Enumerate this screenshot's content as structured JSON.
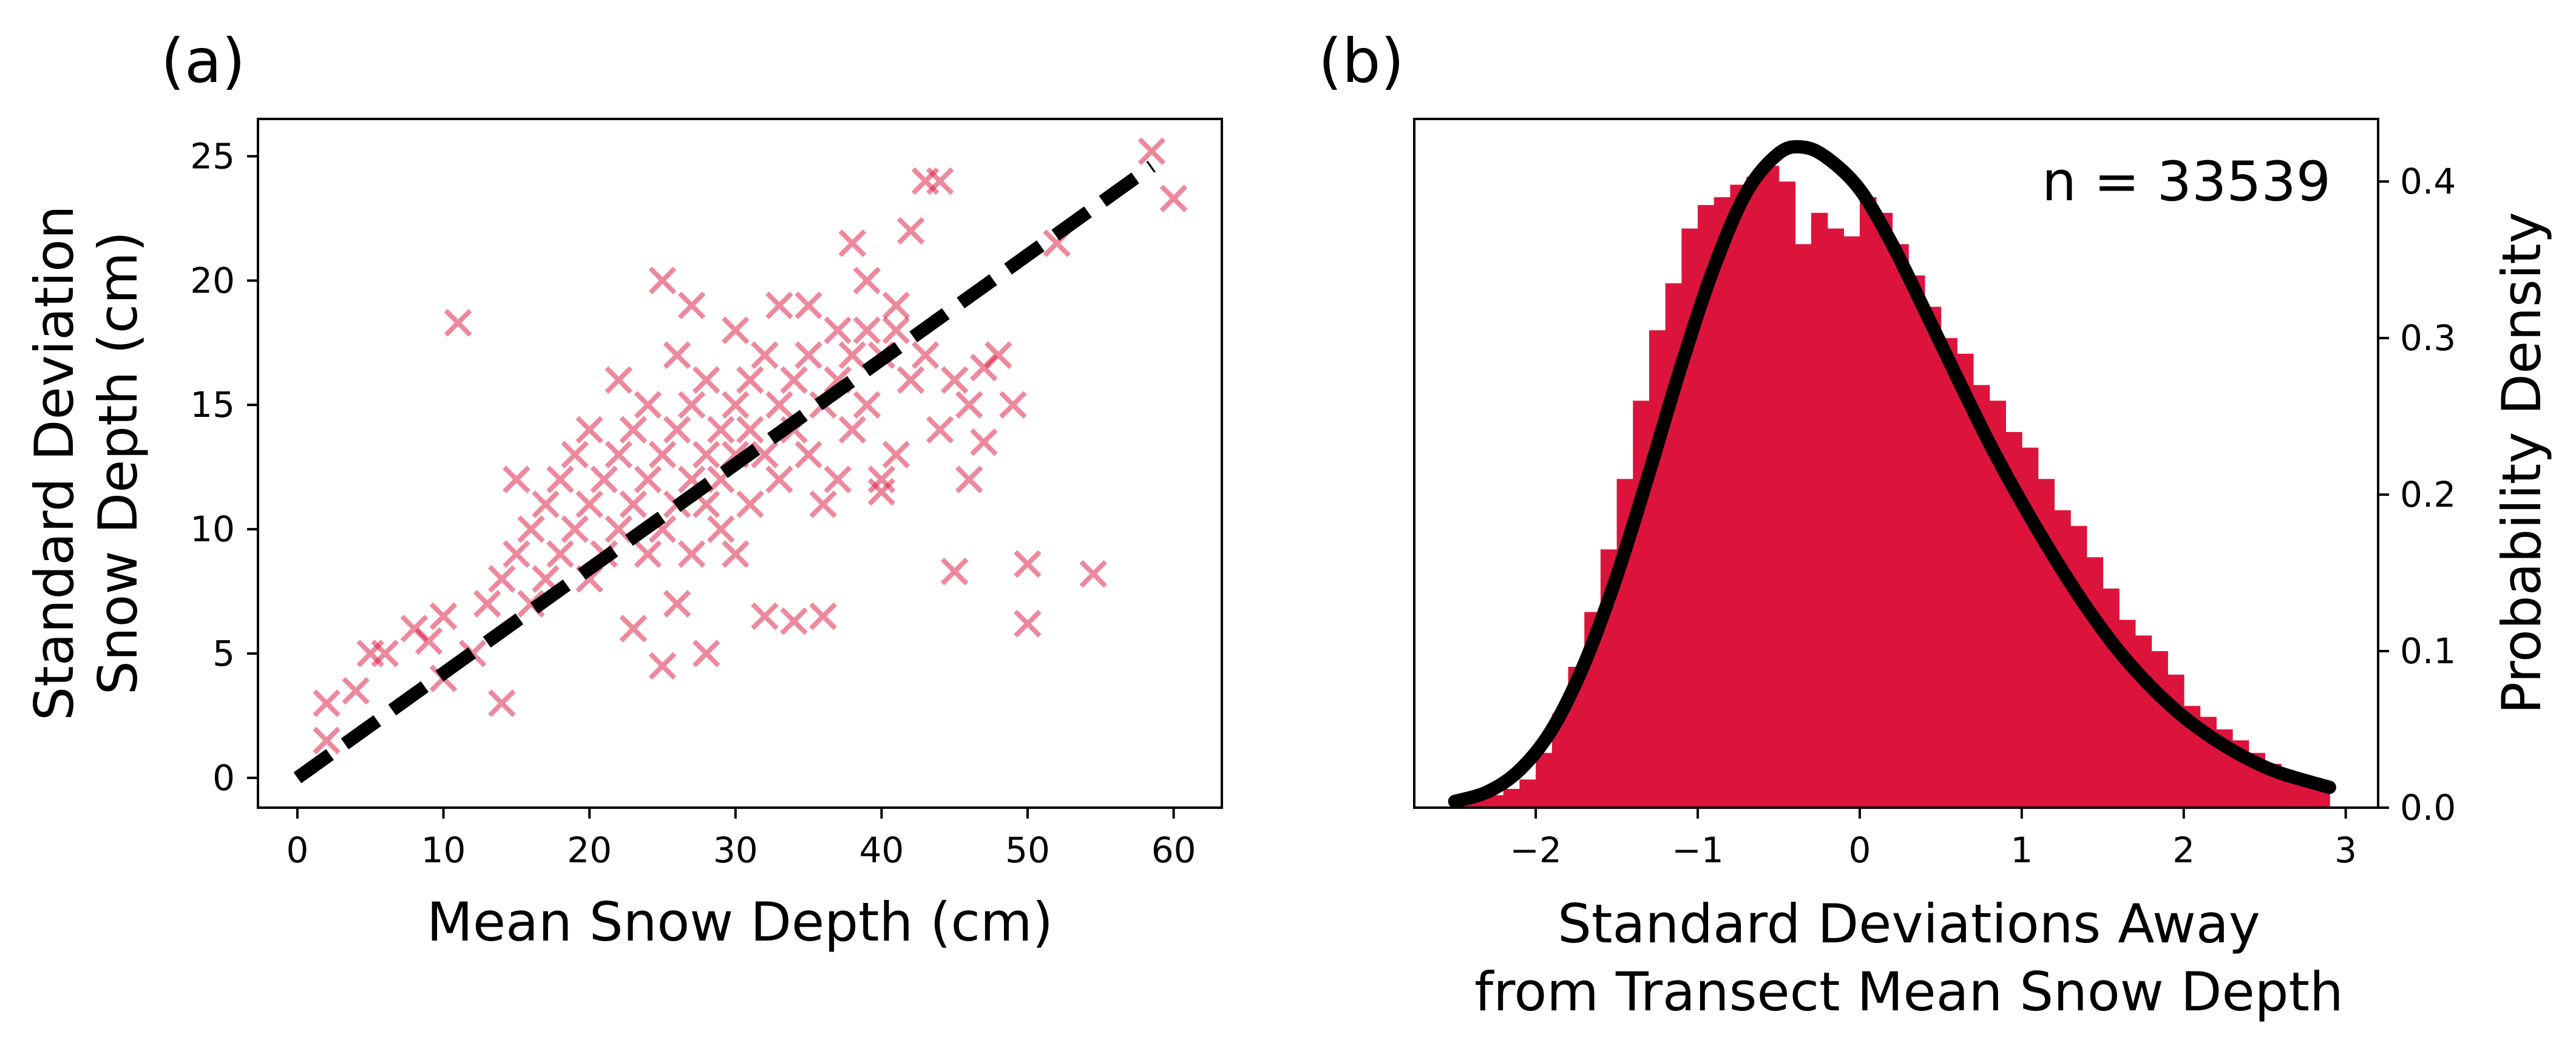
{
  "panels": {
    "a": {
      "label": "(a)"
    },
    "b": {
      "label": "(b)"
    }
  },
  "chart_data": [
    {
      "type": "scatter",
      "panel": "(a)",
      "xlabel": "Mean Snow Depth (cm)",
      "ylabel_lines": [
        "Standard Deviation",
        "Snow Depth (cm)"
      ],
      "xlim": [
        -2.7,
        63.3
      ],
      "ylim": [
        -1.2,
        26.5
      ],
      "xticks": [
        0,
        10,
        20,
        30,
        40,
        50,
        60
      ],
      "yticks": [
        0,
        5,
        10,
        15,
        20,
        25
      ],
      "grid": false,
      "marker": "x",
      "marker_color": "#DC143C",
      "marker_alpha": 0.5,
      "fit_line": {
        "style": "dashed",
        "color": "#000000",
        "x": [
          0,
          58.5
        ],
        "y": [
          0,
          24.6
        ]
      },
      "points": [
        [
          2,
          1.5
        ],
        [
          2,
          3
        ],
        [
          4,
          3.5
        ],
        [
          5,
          5
        ],
        [
          6,
          5
        ],
        [
          8,
          6
        ],
        [
          9,
          5.5
        ],
        [
          10,
          4
        ],
        [
          10,
          6.5
        ],
        [
          11,
          18.3
        ],
        [
          12,
          5
        ],
        [
          13,
          7
        ],
        [
          14,
          8
        ],
        [
          14,
          3
        ],
        [
          15,
          9
        ],
        [
          15,
          12
        ],
        [
          16,
          7
        ],
        [
          16,
          10
        ],
        [
          17,
          11
        ],
        [
          17,
          8
        ],
        [
          18,
          9
        ],
        [
          18,
          12
        ],
        [
          19,
          10
        ],
        [
          19,
          13
        ],
        [
          20,
          11
        ],
        [
          20,
          8
        ],
        [
          20,
          14
        ],
        [
          21,
          12
        ],
        [
          21,
          9
        ],
        [
          22,
          10
        ],
        [
          22,
          13
        ],
        [
          22,
          16
        ],
        [
          23,
          11
        ],
        [
          23,
          6
        ],
        [
          23,
          14
        ],
        [
          24,
          12
        ],
        [
          24,
          9
        ],
        [
          24,
          15
        ],
        [
          25,
          13
        ],
        [
          25,
          20
        ],
        [
          25,
          10
        ],
        [
          25,
          4.5
        ],
        [
          26,
          11
        ],
        [
          26,
          14
        ],
        [
          26,
          17
        ],
        [
          26,
          7
        ],
        [
          27,
          12
        ],
        [
          27,
          15
        ],
        [
          27,
          19
        ],
        [
          27,
          9
        ],
        [
          28,
          13
        ],
        [
          28,
          11
        ],
        [
          28,
          16
        ],
        [
          28,
          5
        ],
        [
          29,
          14
        ],
        [
          29,
          12
        ],
        [
          29,
          10
        ],
        [
          30,
          15
        ],
        [
          30,
          13
        ],
        [
          30,
          18
        ],
        [
          30,
          9
        ],
        [
          31,
          14
        ],
        [
          31,
          16
        ],
        [
          31,
          11
        ],
        [
          32,
          13
        ],
        [
          32,
          17
        ],
        [
          32,
          6.5
        ],
        [
          33,
          15
        ],
        [
          33,
          12
        ],
        [
          33,
          19
        ],
        [
          34,
          16
        ],
        [
          34,
          14
        ],
        [
          34,
          6.3
        ],
        [
          35,
          17
        ],
        [
          35,
          13
        ],
        [
          35,
          19
        ],
        [
          36,
          15
        ],
        [
          36,
          11
        ],
        [
          36,
          6.5
        ],
        [
          37,
          16
        ],
        [
          37,
          12
        ],
        [
          37,
          18
        ],
        [
          38,
          17
        ],
        [
          38,
          21.5
        ],
        [
          38,
          14
        ],
        [
          39,
          18
        ],
        [
          39,
          15
        ],
        [
          39,
          20
        ],
        [
          40,
          12
        ],
        [
          40,
          17
        ],
        [
          40,
          11.5
        ],
        [
          41,
          19
        ],
        [
          41,
          13
        ],
        [
          41,
          18
        ],
        [
          42,
          22
        ],
        [
          42,
          16
        ],
        [
          43,
          24
        ],
        [
          43,
          17
        ],
        [
          44,
          24
        ],
        [
          44,
          14
        ],
        [
          45,
          16
        ],
        [
          45,
          8.3
        ],
        [
          46,
          15
        ],
        [
          46,
          12
        ],
        [
          47,
          13.5
        ],
        [
          47,
          16.5
        ],
        [
          48,
          17
        ],
        [
          49,
          15
        ],
        [
          50,
          6.2
        ],
        [
          50,
          8.6
        ],
        [
          52,
          21.5
        ],
        [
          54.5,
          8.2
        ],
        [
          58.5,
          25.2
        ],
        [
          60,
          23.3
        ]
      ]
    },
    {
      "type": "bar",
      "panel": "(b)",
      "xlabel_lines": [
        "Standard Deviations Away",
        "from Transect Mean Snow Depth"
      ],
      "ylabel": "Probability Density",
      "annotation": "n = 33539",
      "xlim": [
        -2.75,
        3.2
      ],
      "ylim": [
        0,
        0.44
      ],
      "xticks": [
        -2,
        -1,
        0,
        1,
        2,
        3
      ],
      "xtick_labels": [
        "−2",
        "−1",
        "0",
        "1",
        "2",
        "3"
      ],
      "yticks": [
        0.0,
        0.1,
        0.2,
        0.3,
        0.4
      ],
      "ytick_labels": [
        "0.0",
        "0.1",
        "0.2",
        "0.3",
        "0.4"
      ],
      "y_axis_side": "right",
      "grid": false,
      "bar_color": "#DC143C",
      "bin_width": 0.1,
      "bin_starts": [
        -2.5,
        -2.4,
        -2.3,
        -2.2,
        -2.1,
        -2.0,
        -1.9,
        -1.8,
        -1.7,
        -1.6,
        -1.5,
        -1.4,
        -1.3,
        -1.2,
        -1.1,
        -1.0,
        -0.9,
        -0.8,
        -0.7,
        -0.6,
        -0.5,
        -0.4,
        -0.3,
        -0.2,
        -0.1,
        0.0,
        0.1,
        0.2,
        0.3,
        0.4,
        0.5,
        0.6,
        0.7,
        0.8,
        0.9,
        1.0,
        1.1,
        1.2,
        1.3,
        1.4,
        1.5,
        1.6,
        1.7,
        1.8,
        1.9,
        2.0,
        2.1,
        2.2,
        2.3,
        2.4,
        2.5,
        2.6,
        2.7,
        2.8
      ],
      "densities": [
        0.002,
        0.005,
        0.008,
        0.012,
        0.018,
        0.035,
        0.06,
        0.09,
        0.125,
        0.165,
        0.21,
        0.26,
        0.305,
        0.335,
        0.37,
        0.385,
        0.39,
        0.398,
        0.403,
        0.41,
        0.4,
        0.36,
        0.38,
        0.37,
        0.365,
        0.39,
        0.38,
        0.36,
        0.34,
        0.32,
        0.3,
        0.29,
        0.27,
        0.26,
        0.24,
        0.23,
        0.21,
        0.19,
        0.18,
        0.16,
        0.14,
        0.12,
        0.11,
        0.1,
        0.085,
        0.065,
        0.058,
        0.05,
        0.043,
        0.035,
        0.028,
        0.022,
        0.017,
        0.012
      ],
      "fit_curve": {
        "color": "#000000",
        "x": [
          -2.5,
          -2.3,
          -2.1,
          -1.9,
          -1.7,
          -1.5,
          -1.3,
          -1.1,
          -0.9,
          -0.7,
          -0.5,
          -0.35,
          -0.2,
          0.0,
          0.2,
          0.4,
          0.6,
          0.8,
          1.0,
          1.2,
          1.4,
          1.6,
          1.8,
          2.0,
          2.2,
          2.4,
          2.6,
          2.9
        ],
        "y": [
          0.004,
          0.01,
          0.024,
          0.05,
          0.092,
          0.148,
          0.214,
          0.283,
          0.345,
          0.393,
          0.418,
          0.422,
          0.415,
          0.395,
          0.36,
          0.318,
          0.275,
          0.233,
          0.195,
          0.16,
          0.128,
          0.1,
          0.077,
          0.058,
          0.043,
          0.031,
          0.022,
          0.013
        ]
      }
    }
  ]
}
